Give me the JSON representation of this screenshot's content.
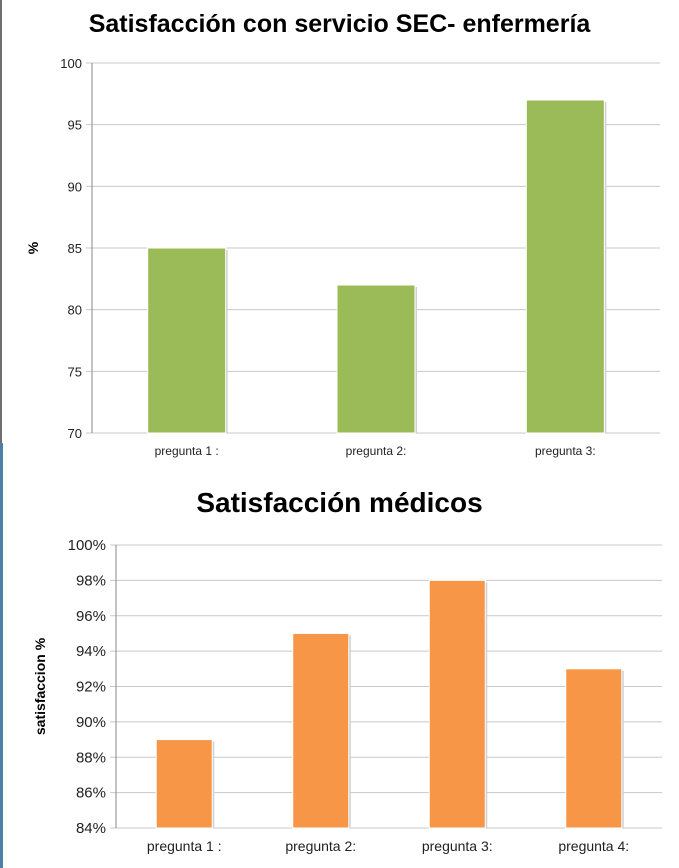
{
  "chart_data": [
    {
      "type": "bar",
      "title": "Satisfacción con servicio SEC- enfermería",
      "xlabel": "",
      "ylabel": "%",
      "categories": [
        "pregunta 1 :",
        "pregunta 2:",
        "pregunta 3:"
      ],
      "values": [
        85,
        82,
        97
      ],
      "ylim": [
        70,
        100
      ],
      "yticks": [
        "70",
        "75",
        "80",
        "85",
        "90",
        "95",
        "100"
      ],
      "grid": true,
      "legend": "none",
      "color": "#9bbb59"
    },
    {
      "type": "bar",
      "title": "Satisfacción médicos",
      "xlabel": "",
      "ylabel": "satisfaccion %",
      "categories": [
        "pregunta 1 :",
        "pregunta 2:",
        "pregunta 3:",
        "pregunta 4:"
      ],
      "values": [
        89,
        95,
        98,
        93
      ],
      "ylim": [
        84,
        100
      ],
      "yticks": [
        "84%",
        "86%",
        "88%",
        "90%",
        "92%",
        "94%",
        "96%",
        "98%",
        "100%"
      ],
      "grid": true,
      "legend": "none",
      "color": "#f79646"
    }
  ]
}
